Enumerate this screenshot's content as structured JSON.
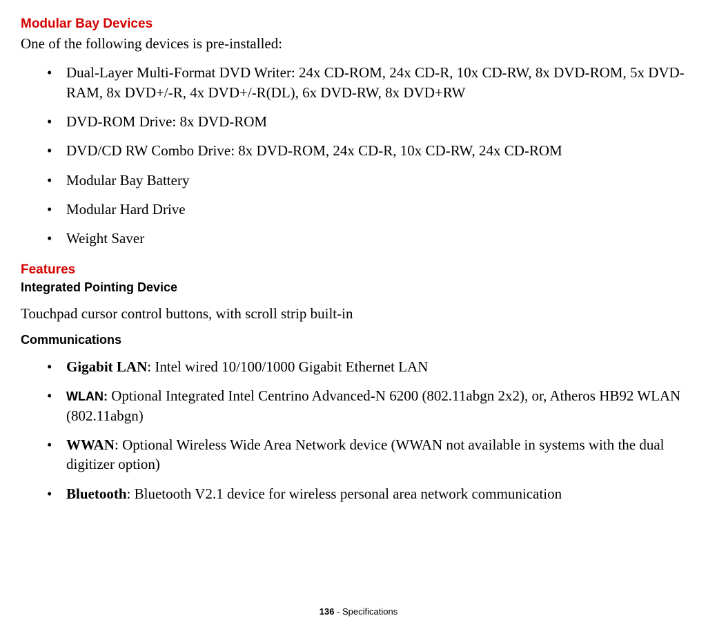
{
  "section1": {
    "heading": "Modular Bay Devices",
    "intro": "One of the following devices is pre-installed:",
    "items": [
      "Dual-Layer Multi-Format DVD Writer: 24x CD-ROM, 24x CD-R, 10x CD-RW, 8x DVD-ROM, 5x DVD-RAM, 8x DVD+/-R, 4x DVD+/-R(DL), 6x DVD-RW, 8x DVD+RW",
      "DVD-ROM Drive: 8x DVD-ROM",
      "DVD/CD RW Combo Drive: 8x DVD-ROM, 24x CD-R, 10x CD-RW, 24x CD-ROM",
      "Modular Bay Battery",
      "Modular Hard Drive",
      "Weight Saver"
    ]
  },
  "section2": {
    "heading": "Features",
    "pointing": {
      "title": "Integrated Pointing Device",
      "text": "Touchpad cursor control buttons, with scroll strip built-in"
    },
    "comms": {
      "title": "Communications",
      "items": [
        {
          "label": "Gigabit LAN",
          "sep": ": ",
          "text": "Intel wired 10/100/1000 Gigabit Ethernet LAN",
          "label_sans": false
        },
        {
          "label": "WLAN:",
          "sep": " ",
          "text": "Optional Integrated Intel Centrino Advanced-N 6200 (802.11abgn 2x2), or, Atheros HB92 WLAN (802.11abgn)",
          "label_sans": true
        },
        {
          "label": "WWAN",
          "sep": ": ",
          "text": "Optional Wireless Wide Area Network device (WWAN not available in systems with the dual digitizer option)",
          "label_sans": false
        },
        {
          "label": "Bluetooth",
          "sep": ": ",
          "text": "Bluetooth V2.1 device for wireless personal area network communication",
          "label_sans": false
        }
      ]
    }
  },
  "footer": {
    "page": "136",
    "sep": " - ",
    "section": "Specifications"
  }
}
